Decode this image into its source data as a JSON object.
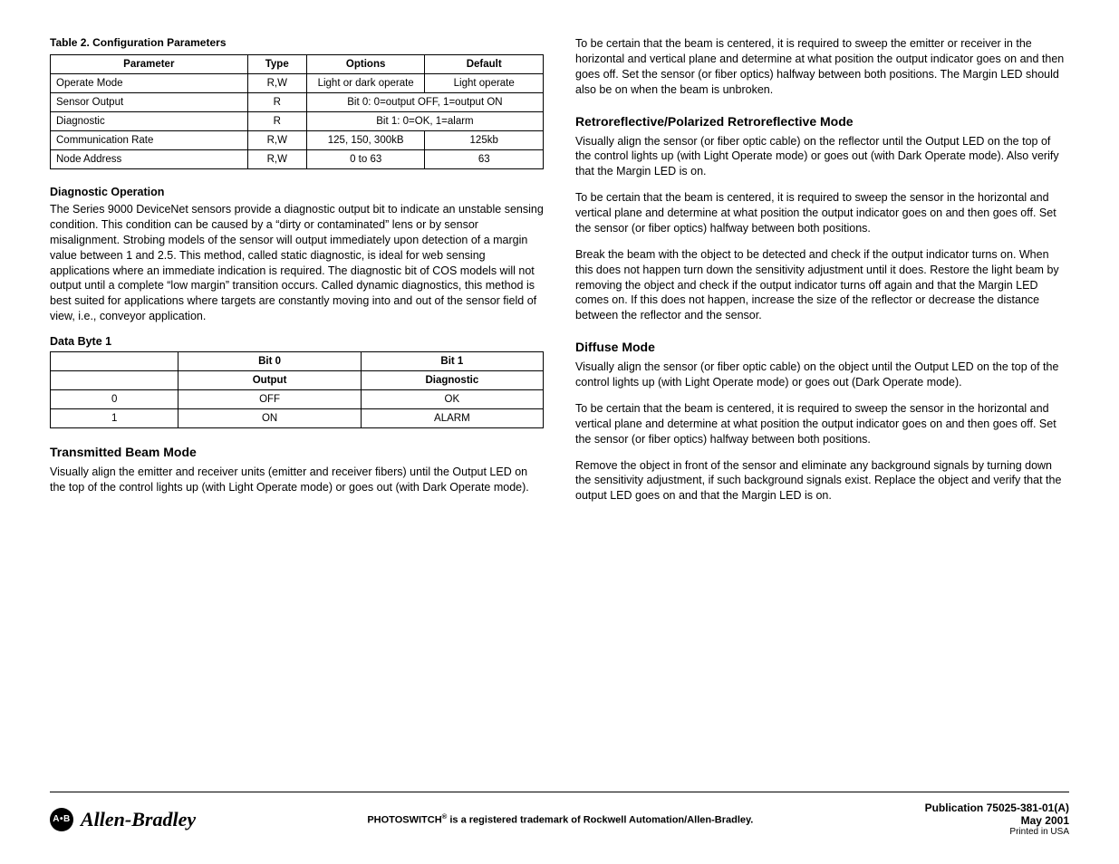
{
  "left": {
    "table2": {
      "caption": "Table 2.  Configuration Parameters",
      "headers": [
        "Parameter",
        "Type",
        "Options",
        "Default"
      ],
      "rows": [
        {
          "param": "Operate Mode",
          "type": "R,W",
          "options": "Light or dark operate",
          "default": "Light operate",
          "merged": false
        },
        {
          "param": "Sensor Output",
          "type": "R",
          "options": "Bit 0:  0=output OFF, 1=output ON",
          "default": "",
          "merged": true
        },
        {
          "param": "Diagnostic",
          "type": "R",
          "options": "Bit 1: 0=OK, 1=alarm",
          "default": "",
          "merged": true
        },
        {
          "param": "Communication Rate",
          "type": "R,W",
          "options": "125, 150, 300kB",
          "default": "125kb",
          "merged": false
        },
        {
          "param": "Node Address",
          "type": "R,W",
          "options": "0 to 63",
          "default": "63",
          "merged": false
        }
      ],
      "col_widths": [
        "40%",
        "12%",
        "24%",
        "24%"
      ]
    },
    "diag_heading": "Diagnostic Operation",
    "diag_para": "The Series 9000 DeviceNet sensors provide a diagnostic output bit to indicate an unstable sensing condition. This condition can be caused by a “dirty or contaminated” lens or by sensor misalignment. Strobing models of the sensor will output immediately upon detection of a margin value between 1 and 2.5. This method, called static diagnostic, is ideal for web sensing applications where an immediate indication is required. The diagnostic bit of COS models will not output until a complete “low margin” transition occurs. Called dynamic diagnostics, this method is best suited for applications where targets are constantly moving into and out of the sensor field of view, i.e., conveyor application.",
    "databyte_heading": "Data Byte 1",
    "databyte_table": {
      "headers": [
        "",
        "Bit 0",
        "Bit 1"
      ],
      "rows": [
        [
          "",
          "Output",
          "Diagnostic"
        ],
        [
          "0",
          "OFF",
          "OK"
        ],
        [
          "1",
          "ON",
          "ALARM"
        ]
      ],
      "col_widths": [
        "26%",
        "37%",
        "37%"
      ],
      "bold_row_idx": 0
    },
    "tb_heading": "Transmitted Beam Mode",
    "tb_para": "Visually align the emitter and receiver units (emitter and receiver fibers) until the Output LED on the top of the control lights up (with Light Operate mode) or goes out (with Dark Operate mode)."
  },
  "right": {
    "p1": "To be certain that the beam is centered, it is required to sweep the emitter or receiver in the horizontal and vertical plane and determine at what position the output indicator goes on and then goes off. Set the sensor (or fiber optics) halfway between both positions. The Margin LED should also be on when the beam is unbroken.",
    "retro_heading": "Retroreflective/Polarized Retroreflective Mode",
    "retro_p1": "Visually align the sensor (or fiber optic cable) on the reflector until the Output LED on the top of the control lights up (with Light Operate mode) or goes out (with Dark Operate mode). Also verify that the Margin LED is on.",
    "retro_p2": "To be certain that the beam is centered, it is required to sweep the sensor in the horizontal and vertical plane and determine at what position the output indicator goes on and then goes off. Set the sensor (or fiber optics) halfway between both positions.",
    "retro_p3": "Break the beam with the object to be detected and check if the output indicator turns on. When this does not happen turn down the sensitivity adjustment until it does. Restore the light beam by removing the object and check if the output indicator turns off again and that the Margin LED comes on. If this does not happen, increase the size of the reflector or decrease the distance between the reflector and the sensor.",
    "diffuse_heading": "Diffuse Mode",
    "diffuse_p1": "Visually align the sensor (or fiber optic cable) on the object until the Output LED on the top of the control lights up (with Light Operate mode) or goes out (Dark Operate mode).",
    "diffuse_p2": "To be certain that the beam is centered, it is required to sweep the sensor in the horizontal and vertical plane and determine at what position the output indicator goes on and then goes off. Set the sensor (or fiber optics) halfway between both positions.",
    "diffuse_p3": "Remove the object in front of the sensor and eliminate any background signals by turning down the sensitivity adjustment, if such background signals exist. Replace the object and verify that the output LED goes on and that the Margin LED is on."
  },
  "footer": {
    "logo_badge": "A•B",
    "logo_text": "Allen-Bradley",
    "center_pre": "PHOTOSWITCH",
    "center_post": " is a registered trademark of Rockwell Automation/Allen-Bradley.",
    "pub": "Publication 75025-381-01(A)",
    "date": "May 2001",
    "printed": "Printed in USA"
  }
}
